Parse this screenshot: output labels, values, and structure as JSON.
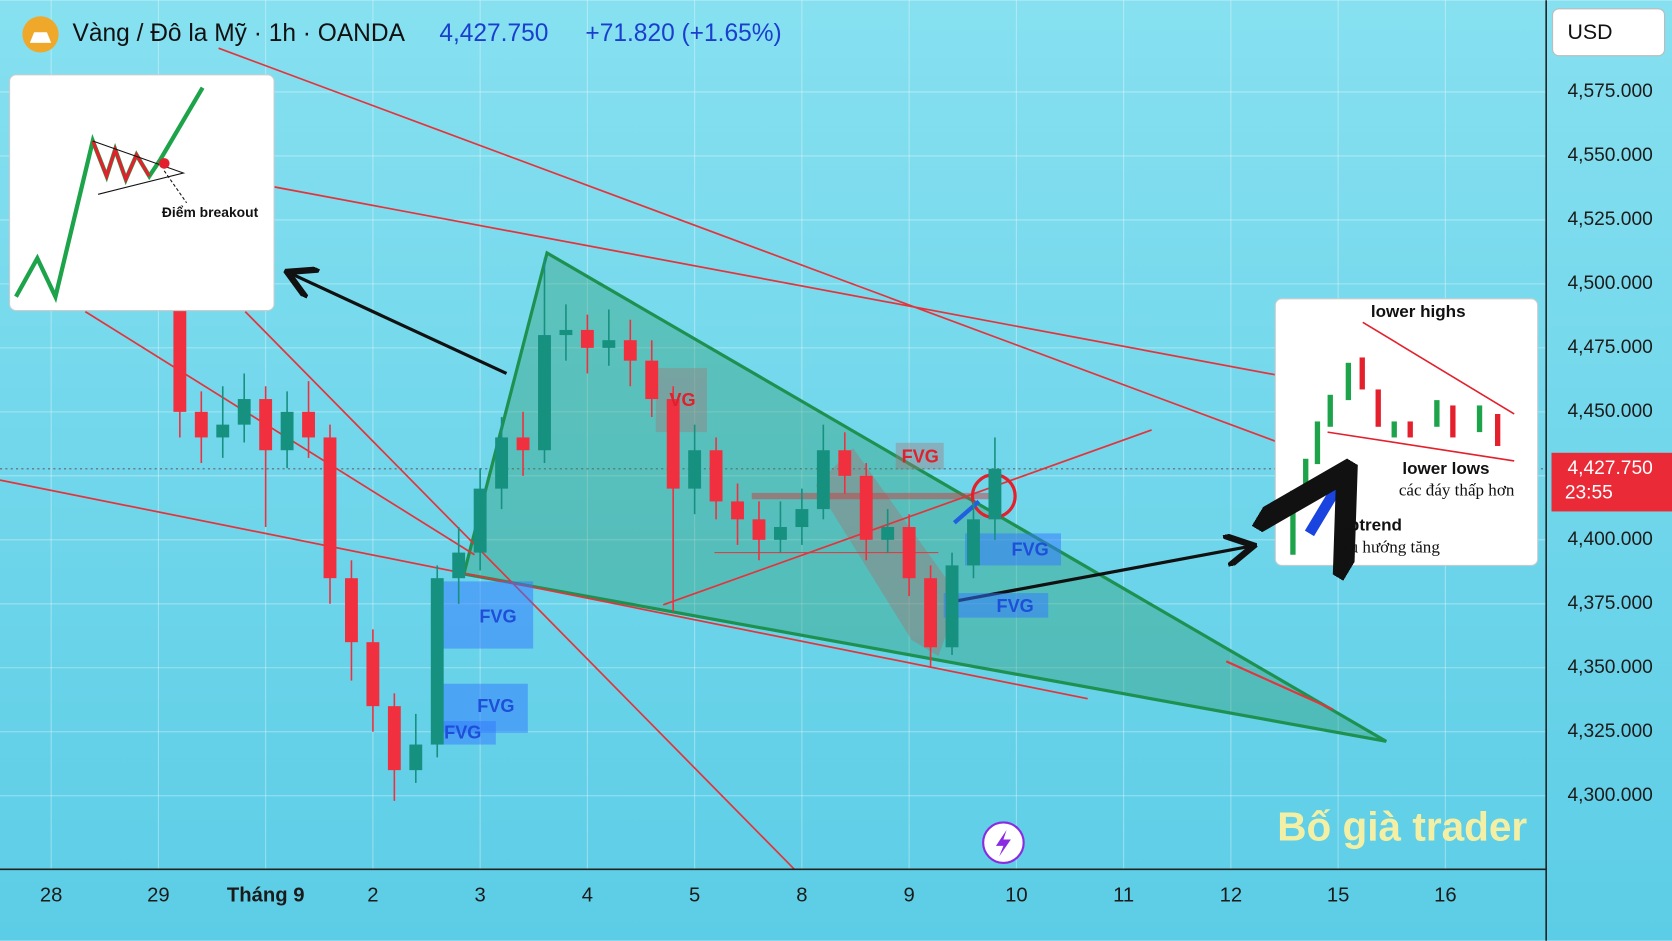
{
  "chart_data": {
    "type": "candlestick",
    "symbol": "Vàng / Đô la Mỹ · 1h · OANDA",
    "change": "+71.820 (+1.65%)",
    "currency": "USD",
    "last_price": {
      "value": 4427.75,
      "label": "4,427.750"
    },
    "countdown": "23:55",
    "up_color": "#16907f",
    "down_color": "#f0303f",
    "grid": true,
    "xlim": [
      -0.477,
      13.94
    ],
    "ylim": [
      4271.25,
      4610.83
    ],
    "xticks": [
      {
        "value": 0,
        "label": "28"
      },
      {
        "value": 1,
        "label": "29"
      },
      {
        "value": 2,
        "label": "Tháng 9"
      },
      {
        "value": 3,
        "label": "2"
      },
      {
        "value": 4,
        "label": "3"
      },
      {
        "value": 5,
        "label": "4"
      },
      {
        "value": 6,
        "label": "5"
      },
      {
        "value": 7,
        "label": "8"
      },
      {
        "value": 8,
        "label": "9"
      },
      {
        "value": 9,
        "label": "10"
      },
      {
        "value": 10,
        "label": "11"
      },
      {
        "value": 11,
        "label": "12"
      },
      {
        "value": 12,
        "label": "15"
      },
      {
        "value": 13,
        "label": "16"
      }
    ],
    "yticks": [
      {
        "value": 4300,
        "label": "4,300.000"
      },
      {
        "value": 4325,
        "label": "4,325.000"
      },
      {
        "value": 4350,
        "label": "4,350.000"
      },
      {
        "value": 4375,
        "label": "4,375.000"
      },
      {
        "value": 4400,
        "label": "4,400.000"
      },
      {
        "value": 4425,
        "label": "4,425.000"
      },
      {
        "value": 4450,
        "label": "4,450.000"
      },
      {
        "value": 4475,
        "label": "4,475.000"
      },
      {
        "value": 4500,
        "label": "4,500.000"
      },
      {
        "value": 4525,
        "label": "4,525.000"
      },
      {
        "value": 4550,
        "label": "4,550.000"
      },
      {
        "value": 4575,
        "label": "4,575.000"
      }
    ],
    "x": [
      1.2,
      1.4,
      1.6,
      1.8,
      2.0,
      2.2,
      2.4,
      2.6,
      2.8,
      3.0,
      3.2,
      3.4,
      3.6,
      3.8,
      4.0,
      4.2,
      4.4,
      4.6,
      4.8,
      5.0,
      5.2,
      5.4,
      5.6,
      5.8,
      6.0,
      6.2,
      6.4,
      6.6,
      6.8,
      7.0,
      7.2,
      7.4,
      7.6,
      7.8,
      8.0,
      8.2,
      8.4,
      8.6,
      8.8
    ],
    "open": [
      4490,
      4450,
      4440,
      4445,
      4455,
      4435,
      4450,
      4440,
      4385,
      4360,
      4335,
      4310,
      4320,
      4385,
      4395,
      4420,
      4440,
      4435,
      4480,
      4482,
      4475,
      4478,
      4470,
      4455,
      4420,
      4435,
      4415,
      4408,
      4400,
      4405,
      4412,
      4435,
      4425,
      4400,
      4405,
      4385,
      4358,
      4390,
      4408
    ],
    "high": [
      4495,
      4458,
      4460,
      4465,
      4460,
      4458,
      4462,
      4445,
      4392,
      4365,
      4340,
      4332,
      4390,
      4405,
      4428,
      4448,
      4450,
      4510,
      4492,
      4488,
      4490,
      4486,
      4478,
      4460,
      4445,
      4440,
      4422,
      4415,
      4415,
      4420,
      4445,
      4442,
      4430,
      4412,
      4410,
      4390,
      4395,
      4415,
      4440
    ],
    "low": [
      4440,
      4430,
      4432,
      4438,
      4405,
      4428,
      4432,
      4375,
      4345,
      4325,
      4298,
      4305,
      4315,
      4375,
      4388,
      4412,
      4425,
      4430,
      4470,
      4465,
      4468,
      4460,
      4448,
      4372,
      4410,
      4408,
      4398,
      4392,
      4395,
      4398,
      4408,
      4418,
      4392,
      4395,
      4378,
      4350,
      4355,
      4385,
      4400
    ],
    "close": [
      4450,
      4440,
      4445,
      4455,
      4435,
      4450,
      4440,
      4385,
      4360,
      4335,
      4310,
      4320,
      4385,
      4395,
      4420,
      4440,
      4435,
      4480,
      4482,
      4475,
      4478,
      4470,
      4455,
      4420,
      4435,
      4415,
      4408,
      4400,
      4405,
      4412,
      4435,
      4425,
      4400,
      4405,
      4385,
      4358,
      4390,
      4408,
      4427.75
    ],
    "annotations": [
      "FVG",
      "FVG",
      "FVG",
      "FVG",
      "FVG",
      "VG",
      "FVG"
    ],
    "inset_breakout": {
      "label": "Điểm breakout"
    },
    "inset_pattern": {
      "top": "lower highs",
      "bottom": "lower lows",
      "bottom_vi": "các đáy thấp hơn",
      "trend": "uptrend",
      "trend_vi": "xu hướng tăng"
    },
    "watermark": "Bố già trader"
  }
}
